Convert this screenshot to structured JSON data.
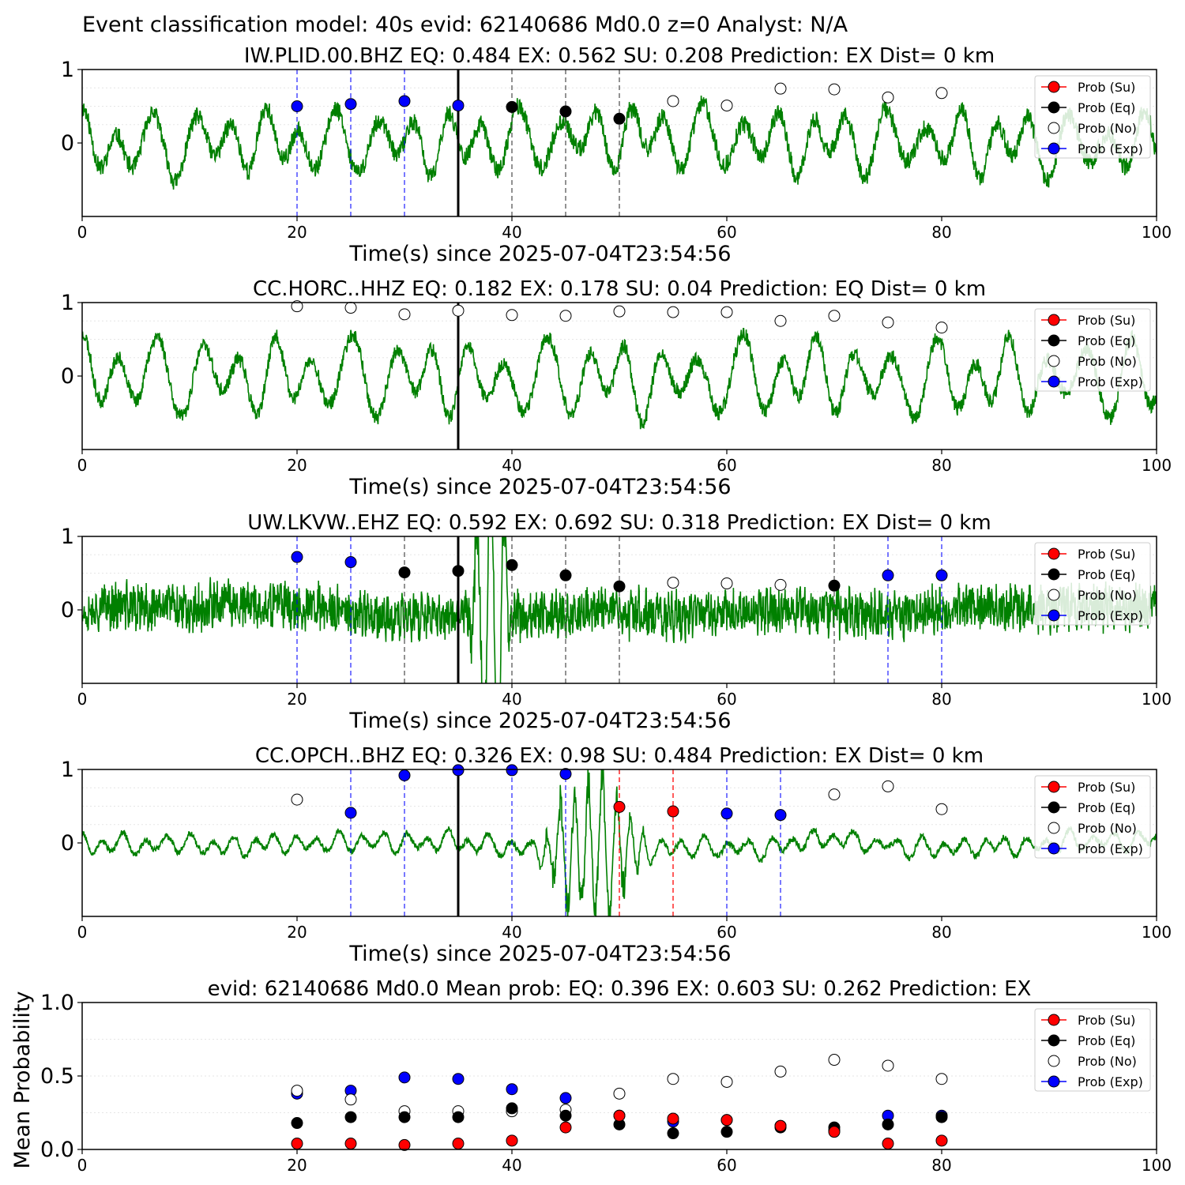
{
  "figure": {
    "suptitle": "Event classification model: 40s evid: 62140686 Md0.0 z=0 Analyst: N/A",
    "colors": {
      "waveform": "#008000",
      "su": "#ff0000",
      "eq": "#000000",
      "no": "#ffffff",
      "exp": "#0000ff",
      "origin_line": "#000000",
      "eq_line": "#555555"
    }
  },
  "chart_data": [
    {
      "type": "line",
      "title": "IW.PLID.00.BHZ   EQ: 0.484  EX: 0.562  SU: 0.208   Prediction: EX    Dist= 0 km",
      "xlabel": "Time(s) since 2025-07-04T23:54:56",
      "ylabel": "",
      "xlim": [
        0,
        100
      ],
      "ylim": [
        -1,
        1
      ],
      "xticks": [
        0,
        20,
        40,
        60,
        80,
        100
      ],
      "yticks": [
        0,
        1
      ],
      "origin_time": 35,
      "legend": [
        "Prob (Su)",
        "Prob (Eq)",
        "Prob (No)",
        "Prob (Exp)"
      ],
      "legend_position": "upper right",
      "waveform": {
        "seed": 11,
        "period": 3.4,
        "noise": 0.12,
        "amp": 0.32,
        "burst": null
      },
      "points": [
        {
          "t": 20,
          "p": 0.5,
          "cls": "exp"
        },
        {
          "t": 25,
          "p": 0.53,
          "cls": "exp"
        },
        {
          "t": 30,
          "p": 0.57,
          "cls": "exp"
        },
        {
          "t": 35,
          "p": 0.51,
          "cls": "exp"
        },
        {
          "t": 40,
          "p": 0.49,
          "cls": "eq"
        },
        {
          "t": 45,
          "p": 0.43,
          "cls": "eq"
        },
        {
          "t": 50,
          "p": 0.33,
          "cls": "eq"
        },
        {
          "t": 55,
          "p": 0.57,
          "cls": "no"
        },
        {
          "t": 60,
          "p": 0.51,
          "cls": "no"
        },
        {
          "t": 65,
          "p": 0.74,
          "cls": "no"
        },
        {
          "t": 70,
          "p": 0.73,
          "cls": "no"
        },
        {
          "t": 75,
          "p": 0.62,
          "cls": "no"
        },
        {
          "t": 80,
          "p": 0.68,
          "cls": "no"
        }
      ]
    },
    {
      "type": "line",
      "title": "CC.HORC..HHZ   EQ: 0.182  EX: 0.178  SU: 0.04   Prediction: EQ    Dist= 0 km",
      "xlabel": "Time(s) since 2025-07-04T23:54:56",
      "ylabel": "",
      "xlim": [
        0,
        100
      ],
      "ylim": [
        -1,
        1
      ],
      "xticks": [
        0,
        20,
        40,
        60,
        80,
        100
      ],
      "yticks": [
        0,
        1
      ],
      "origin_time": 35,
      "legend": [
        "Prob (Su)",
        "Prob (Eq)",
        "Prob (No)",
        "Prob (Exp)"
      ],
      "legend_position": "upper right",
      "waveform": {
        "seed": 23,
        "period": 3.6,
        "noise": 0.1,
        "amp": 0.38,
        "burst": null
      },
      "points": [
        {
          "t": 20,
          "p": 0.95,
          "cls": "no"
        },
        {
          "t": 25,
          "p": 0.93,
          "cls": "no"
        },
        {
          "t": 30,
          "p": 0.84,
          "cls": "no"
        },
        {
          "t": 35,
          "p": 0.89,
          "cls": "no"
        },
        {
          "t": 40,
          "p": 0.83,
          "cls": "no"
        },
        {
          "t": 45,
          "p": 0.82,
          "cls": "no"
        },
        {
          "t": 50,
          "p": 0.88,
          "cls": "no"
        },
        {
          "t": 55,
          "p": 0.87,
          "cls": "no"
        },
        {
          "t": 60,
          "p": 0.87,
          "cls": "no"
        },
        {
          "t": 65,
          "p": 0.75,
          "cls": "no"
        },
        {
          "t": 70,
          "p": 0.82,
          "cls": "no"
        },
        {
          "t": 75,
          "p": 0.73,
          "cls": "no"
        },
        {
          "t": 80,
          "p": 0.66,
          "cls": "no"
        }
      ]
    },
    {
      "type": "line",
      "title": "UW.LKVW..EHZ   EQ: 0.592  EX: 0.692  SU: 0.318   Prediction: EX    Dist= 0 km",
      "xlabel": "Time(s) since 2025-07-04T23:54:56",
      "ylabel": "",
      "xlim": [
        0,
        100
      ],
      "ylim": [
        -1,
        1
      ],
      "xticks": [
        0,
        20,
        40,
        60,
        80,
        100
      ],
      "yticks": [
        0,
        1
      ],
      "origin_time": 35,
      "legend": [
        "Prob (Su)",
        "Prob (Eq)",
        "Prob (No)",
        "Prob (Exp)"
      ],
      "legend_position": "upper right",
      "waveform": {
        "seed": 37,
        "period": 0.35,
        "noise": 0.28,
        "amp": 0.08,
        "burst": [
          36,
          40,
          2.2
        ]
      },
      "points": [
        {
          "t": 20,
          "p": 0.72,
          "cls": "exp"
        },
        {
          "t": 25,
          "p": 0.65,
          "cls": "exp"
        },
        {
          "t": 30,
          "p": 0.51,
          "cls": "eq"
        },
        {
          "t": 35,
          "p": 0.53,
          "cls": "eq"
        },
        {
          "t": 40,
          "p": 0.61,
          "cls": "eq"
        },
        {
          "t": 45,
          "p": 0.47,
          "cls": "eq"
        },
        {
          "t": 50,
          "p": 0.32,
          "cls": "eq"
        },
        {
          "t": 55,
          "p": 0.37,
          "cls": "no"
        },
        {
          "t": 60,
          "p": 0.36,
          "cls": "no"
        },
        {
          "t": 65,
          "p": 0.34,
          "cls": "no"
        },
        {
          "t": 70,
          "p": 0.33,
          "cls": "eq"
        },
        {
          "t": 75,
          "p": 0.47,
          "cls": "exp"
        },
        {
          "t": 80,
          "p": 0.47,
          "cls": "exp"
        }
      ]
    },
    {
      "type": "line",
      "title": "CC.OPCH..BHZ   EQ: 0.326  EX: 0.98  SU: 0.484   Prediction: EX    Dist= 0 km",
      "xlabel": "Time(s) since 2025-07-04T23:54:56",
      "ylabel": "",
      "xlim": [
        0,
        100
      ],
      "ylim": [
        -1,
        1
      ],
      "xticks": [
        0,
        20,
        40,
        60,
        80,
        100
      ],
      "yticks": [
        0,
        1
      ],
      "origin_time": 35,
      "legend": [
        "Prob (Su)",
        "Prob (Eq)",
        "Prob (No)",
        "Prob (Exp)"
      ],
      "legend_position": "upper right",
      "waveform": {
        "seed": 53,
        "period": 2.0,
        "noise": 0.04,
        "amp": 0.1,
        "burst": [
          42,
          53,
          0.9
        ]
      },
      "points": [
        {
          "t": 20,
          "p": 0.59,
          "cls": "no"
        },
        {
          "t": 25,
          "p": 0.41,
          "cls": "exp"
        },
        {
          "t": 30,
          "p": 0.92,
          "cls": "exp"
        },
        {
          "t": 35,
          "p": 0.99,
          "cls": "exp"
        },
        {
          "t": 40,
          "p": 0.99,
          "cls": "exp"
        },
        {
          "t": 45,
          "p": 0.94,
          "cls": "exp"
        },
        {
          "t": 50,
          "p": 0.49,
          "cls": "su"
        },
        {
          "t": 55,
          "p": 0.43,
          "cls": "su"
        },
        {
          "t": 60,
          "p": 0.4,
          "cls": "exp"
        },
        {
          "t": 65,
          "p": 0.38,
          "cls": "exp"
        },
        {
          "t": 70,
          "p": 0.66,
          "cls": "no"
        },
        {
          "t": 75,
          "p": 0.77,
          "cls": "no"
        },
        {
          "t": 80,
          "p": 0.46,
          "cls": "no"
        }
      ]
    },
    {
      "type": "scatter",
      "title": "evid: 62140686  Md0.0   Mean prob:   EQ: 0.396  EX: 0.603  SU: 0.262   Prediction: EX",
      "xlabel": "",
      "ylabel": "Mean Probability",
      "xlim": [
        0,
        100
      ],
      "ylim": [
        0,
        1
      ],
      "xticks": [
        0,
        20,
        40,
        60,
        80,
        100
      ],
      "yticks": [
        0.0,
        0.5,
        1.0
      ],
      "ytick_labels": [
        "0.0",
        "0.5",
        "1.0"
      ],
      "legend": [
        "Prob (Su)",
        "Prob (Eq)",
        "Prob (No)",
        "Prob (Exp)"
      ],
      "legend_position": "upper right",
      "x": [
        20,
        25,
        30,
        35,
        40,
        45,
        50,
        55,
        60,
        65,
        70,
        75,
        80
      ],
      "series": [
        {
          "name": "Prob (Exp)",
          "cls": "exp",
          "values": [
            0.38,
            0.4,
            0.49,
            0.48,
            0.41,
            0.35,
            0.23,
            0.19,
            0.2,
            0.16,
            0.13,
            0.23,
            0.23
          ]
        },
        {
          "name": "Prob (No)",
          "cls": "no",
          "values": [
            0.4,
            0.34,
            0.26,
            0.26,
            0.26,
            0.27,
            0.38,
            0.48,
            0.46,
            0.53,
            0.61,
            0.57,
            0.48
          ]
        },
        {
          "name": "Prob (Eq)",
          "cls": "eq",
          "values": [
            0.18,
            0.22,
            0.22,
            0.22,
            0.28,
            0.23,
            0.17,
            0.11,
            0.12,
            0.15,
            0.15,
            0.17,
            0.22
          ]
        },
        {
          "name": "Prob (Su)",
          "cls": "su",
          "values": [
            0.04,
            0.04,
            0.03,
            0.04,
            0.06,
            0.15,
            0.23,
            0.21,
            0.2,
            0.16,
            0.12,
            0.04,
            0.06
          ]
        }
      ]
    }
  ]
}
